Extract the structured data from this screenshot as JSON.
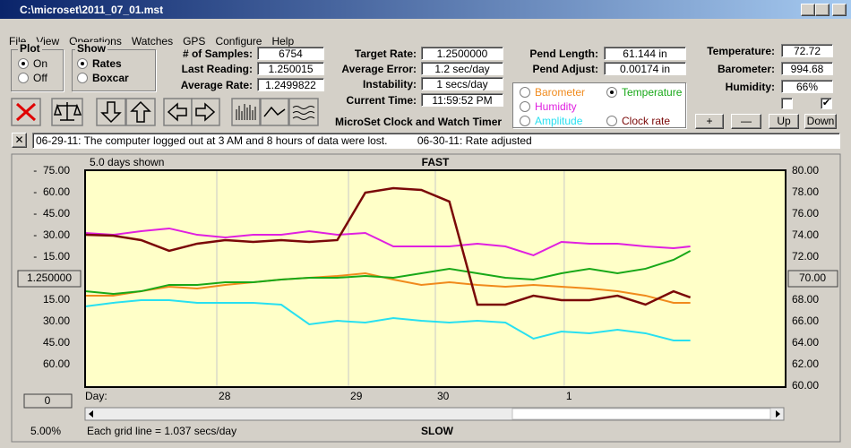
{
  "window": {
    "title": "C:\\microset\\2011_07_01.mst"
  },
  "menu": [
    "File",
    "View",
    "Operations",
    "Watches",
    "GPS",
    "Configure",
    "Help"
  ],
  "plot": {
    "title": "Plot",
    "options": [
      "On",
      "Off"
    ],
    "selected": 0
  },
  "show": {
    "title": "Show",
    "options": [
      "Rates",
      "Boxcar"
    ],
    "selected": 0
  },
  "readouts": [
    {
      "label": "# of Samples:",
      "value": "6754"
    },
    {
      "label": "Last Reading:",
      "value": "1.250015"
    },
    {
      "label": "Average Rate:",
      "value": "1.2499822"
    }
  ],
  "rates": [
    {
      "label": "Target Rate:",
      "value": "1.2500000"
    },
    {
      "label": "Average Error:",
      "value": "1.2 sec/day"
    },
    {
      "label": "Instability:",
      "value": "1 secs/day"
    },
    {
      "label": "Current Time:",
      "value": "11:59:52 PM"
    }
  ],
  "pendulum": [
    {
      "label": "Pend Length:",
      "value": "61.144 in"
    },
    {
      "label": "Pend Adjust:",
      "value": "0.00174 in"
    }
  ],
  "app_title": "MicroSet Clock and Watch Timer",
  "sensors": [
    {
      "label": "Temperature:",
      "value": "72.72"
    },
    {
      "label": "Barometer:",
      "value": "994.68"
    },
    {
      "label": "Humidity:",
      "value": "66%"
    }
  ],
  "sensor_buttons": [
    "+",
    "—",
    "Up",
    "Down"
  ],
  "notes": [
    "06-29-11: The computer logged out at 3 AM and 8 hours of data were lost.",
    "06-30-11: Rate adjusted"
  ],
  "chart_data": {
    "type": "line",
    "days_shown": "5.0 days shown",
    "top_label": "FAST",
    "bottom_label": "SLOW",
    "footer": "Each grid line = 1.037 secs/day",
    "zoom": "5.00%",
    "center_label": "1.250000",
    "right_center_label": "70.00",
    "offset_button": "0",
    "xlabel": "Day:",
    "grid": true,
    "x": [
      0,
      0.2,
      0.4,
      0.6,
      0.8,
      1,
      1.2,
      1.4,
      1.6,
      1.8,
      2,
      2.2,
      2.4,
      2.6,
      2.8,
      3,
      3.2,
      3.4,
      3.6,
      3.8,
      4,
      4.2,
      4.32
    ],
    "xlim": [
      0,
      5
    ],
    "xticks": [
      {
        "value": 0.94,
        "label": "28"
      },
      {
        "value": 1.88,
        "label": "29"
      },
      {
        "value": 2.5,
        "label": "30"
      },
      {
        "value": 3.42,
        "label": "1"
      }
    ],
    "ylim": [
      75,
      -75
    ],
    "yticks": [
      {
        "value": -75,
        "label": "-  75.00"
      },
      {
        "value": -60,
        "label": "-  60.00"
      },
      {
        "value": -45,
        "label": "-  45.00"
      },
      {
        "value": -30,
        "label": "-  30.00"
      },
      {
        "value": -15,
        "label": "-  15.00"
      },
      {
        "value": 15,
        "label": "15.00"
      },
      {
        "value": 30,
        "label": "30.00"
      },
      {
        "value": 45,
        "label": "45.00"
      },
      {
        "value": 60,
        "label": "60.00"
      }
    ],
    "y2lim": [
      60,
      80
    ],
    "y2ticks": [
      {
        "value": 80,
        "label": "80.00"
      },
      {
        "value": 78,
        "label": "78.00"
      },
      {
        "value": 76,
        "label": "76.00"
      },
      {
        "value": 74,
        "label": "74.00"
      },
      {
        "value": 72,
        "label": "72.00"
      },
      {
        "value": 68,
        "label": "68.00"
      },
      {
        "value": 66,
        "label": "66.00"
      },
      {
        "value": 64,
        "label": "64.00"
      },
      {
        "value": 62,
        "label": "62.00"
      },
      {
        "value": 60,
        "label": "60.00"
      }
    ],
    "selected_series": 1,
    "series": [
      {
        "name": "Barometer",
        "color": "#f08a1c",
        "axis": "y2",
        "values": [
          68.42,
          68.42,
          68.83,
          69.25,
          69.08,
          69.42,
          69.67,
          69.92,
          70.08,
          70.25,
          70.5,
          69.92,
          69.42,
          69.67,
          69.42,
          69.25,
          69.42,
          69.25,
          69.08,
          68.83,
          68.42,
          67.75,
          67.75
        ]
      },
      {
        "name": "Temperature",
        "color": "#18a818",
        "axis": "y2",
        "values": [
          68.83,
          68.58,
          68.83,
          69.42,
          69.42,
          69.67,
          69.67,
          69.92,
          70.08,
          70.08,
          70.25,
          70.08,
          70.5,
          70.92,
          70.5,
          70.08,
          69.92,
          70.5,
          70.92,
          70.5,
          70.92,
          71.75,
          72.58
        ]
      },
      {
        "name": "Humidity",
        "color": "#e020e0",
        "axis": "y2",
        "values": [
          74.25,
          74.08,
          74.42,
          74.67,
          74.08,
          73.83,
          74.08,
          74.08,
          74.42,
          74.08,
          74.25,
          73,
          73,
          73,
          73.25,
          73,
          72.17,
          73.42,
          73.25,
          73.25,
          73,
          72.83,
          73
        ]
      },
      {
        "name": "Amplitude",
        "color": "#28e0f0",
        "axis": "y2",
        "values": [
          67.42,
          67.75,
          68,
          68,
          67.75,
          67.75,
          67.75,
          67.58,
          65.75,
          66.08,
          65.92,
          66.33,
          66.08,
          65.92,
          66.08,
          65.92,
          64.42,
          65.08,
          64.92,
          65.25,
          64.92,
          64.25,
          64.25
        ]
      },
      {
        "name": "Clock rate",
        "color": "#7a0808",
        "axis": "y",
        "values": [
          -30.6,
          -30,
          -26.9,
          -19.4,
          -24.4,
          -26.9,
          -25.6,
          -26.9,
          -25.6,
          -26.9,
          -60,
          -63.1,
          -61.9,
          -53.8,
          18.1,
          18.1,
          11.9,
          15,
          15,
          11.9,
          18.1,
          8.8,
          13.1
        ]
      }
    ]
  }
}
